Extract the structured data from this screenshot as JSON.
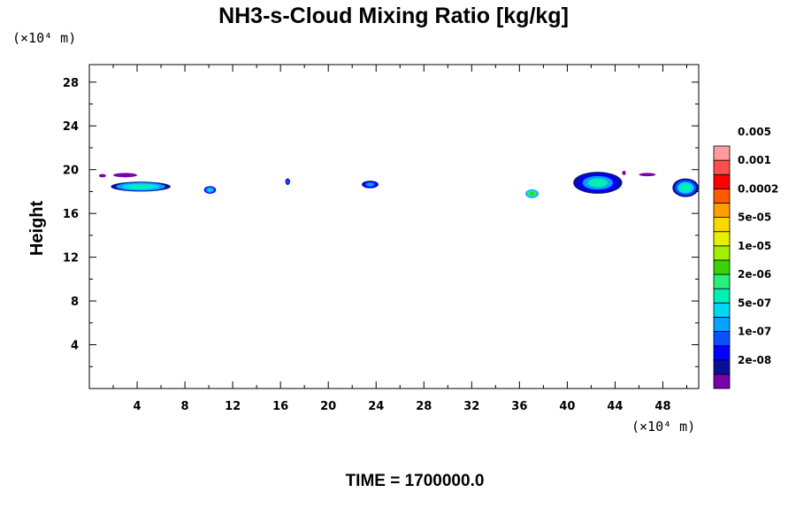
{
  "chart_data": {
    "type": "heatmap",
    "title": "NH3-s-Cloud Mixing Ratio [kg/kg]",
    "xlabel": "",
    "ylabel": "Height",
    "x_unit": "(×10⁴ m)",
    "y_unit": "(×10⁴ m)",
    "xlim": [
      0,
      51
    ],
    "ylim": [
      0,
      29.6
    ],
    "x_ticks": [
      4,
      8,
      12,
      16,
      20,
      24,
      28,
      32,
      36,
      40,
      44,
      48
    ],
    "y_ticks": [
      4,
      8,
      12,
      16,
      20,
      24,
      28
    ],
    "grid": false,
    "footer": "TIME = 1700000.0",
    "colorbar": {
      "placement": "right",
      "labels": [
        "0.005",
        "0.001",
        "0.0002",
        "5e-05",
        "1e-05",
        "2e-06",
        "5e-07",
        "1e-07",
        "2e-08"
      ],
      "colors": [
        "#7a00aa",
        "#0a0f9a",
        "#0000ff",
        "#0a50ff",
        "#0aa0ff",
        "#00d8f5",
        "#00f0b4",
        "#28f07a",
        "#3cd200",
        "#a0f000",
        "#e6f000",
        "#ffd700",
        "#ffa000",
        "#ff5a00",
        "#ff0000",
        "#ff4e4e",
        "#ff9aa0"
      ]
    },
    "cloud_patches": [
      {
        "x": [
          1.8,
          6.8
        ],
        "y": [
          18.0,
          18.9
        ],
        "level": "5e-07 to 2e-06"
      },
      {
        "x": [
          2.0,
          4.0
        ],
        "y": [
          19.3,
          19.7
        ],
        "level": "2e-08"
      },
      {
        "x": [
          0.8,
          1.4
        ],
        "y": [
          19.3,
          19.6
        ],
        "level": "< 2e-08"
      },
      {
        "x": [
          9.6,
          10.6
        ],
        "y": [
          17.8,
          18.5
        ],
        "level": "5e-07"
      },
      {
        "x": [
          16.4,
          16.8
        ],
        "y": [
          18.6,
          19.2
        ],
        "level": "1e-07"
      },
      {
        "x": [
          22.8,
          24.2
        ],
        "y": [
          18.3,
          19.0
        ],
        "level": "1e-07"
      },
      {
        "x": [
          36.5,
          37.6
        ],
        "y": [
          17.4,
          18.2
        ],
        "level": "2e-06 to 1e-05"
      },
      {
        "x": [
          40.5,
          44.6
        ],
        "y": [
          17.8,
          19.8
        ],
        "level": "1e-07 to 2e-06"
      },
      {
        "x": [
          44.6,
          44.9
        ],
        "y": [
          19.5,
          19.9
        ],
        "level": "< 2e-08"
      },
      {
        "x": [
          46.0,
          47.4
        ],
        "y": [
          19.4,
          19.7
        ],
        "level": "< 2e-08"
      },
      {
        "x": [
          48.8,
          51.0
        ],
        "y": [
          17.5,
          19.2
        ],
        "level": "1e-07 to 2e-06"
      }
    ]
  }
}
